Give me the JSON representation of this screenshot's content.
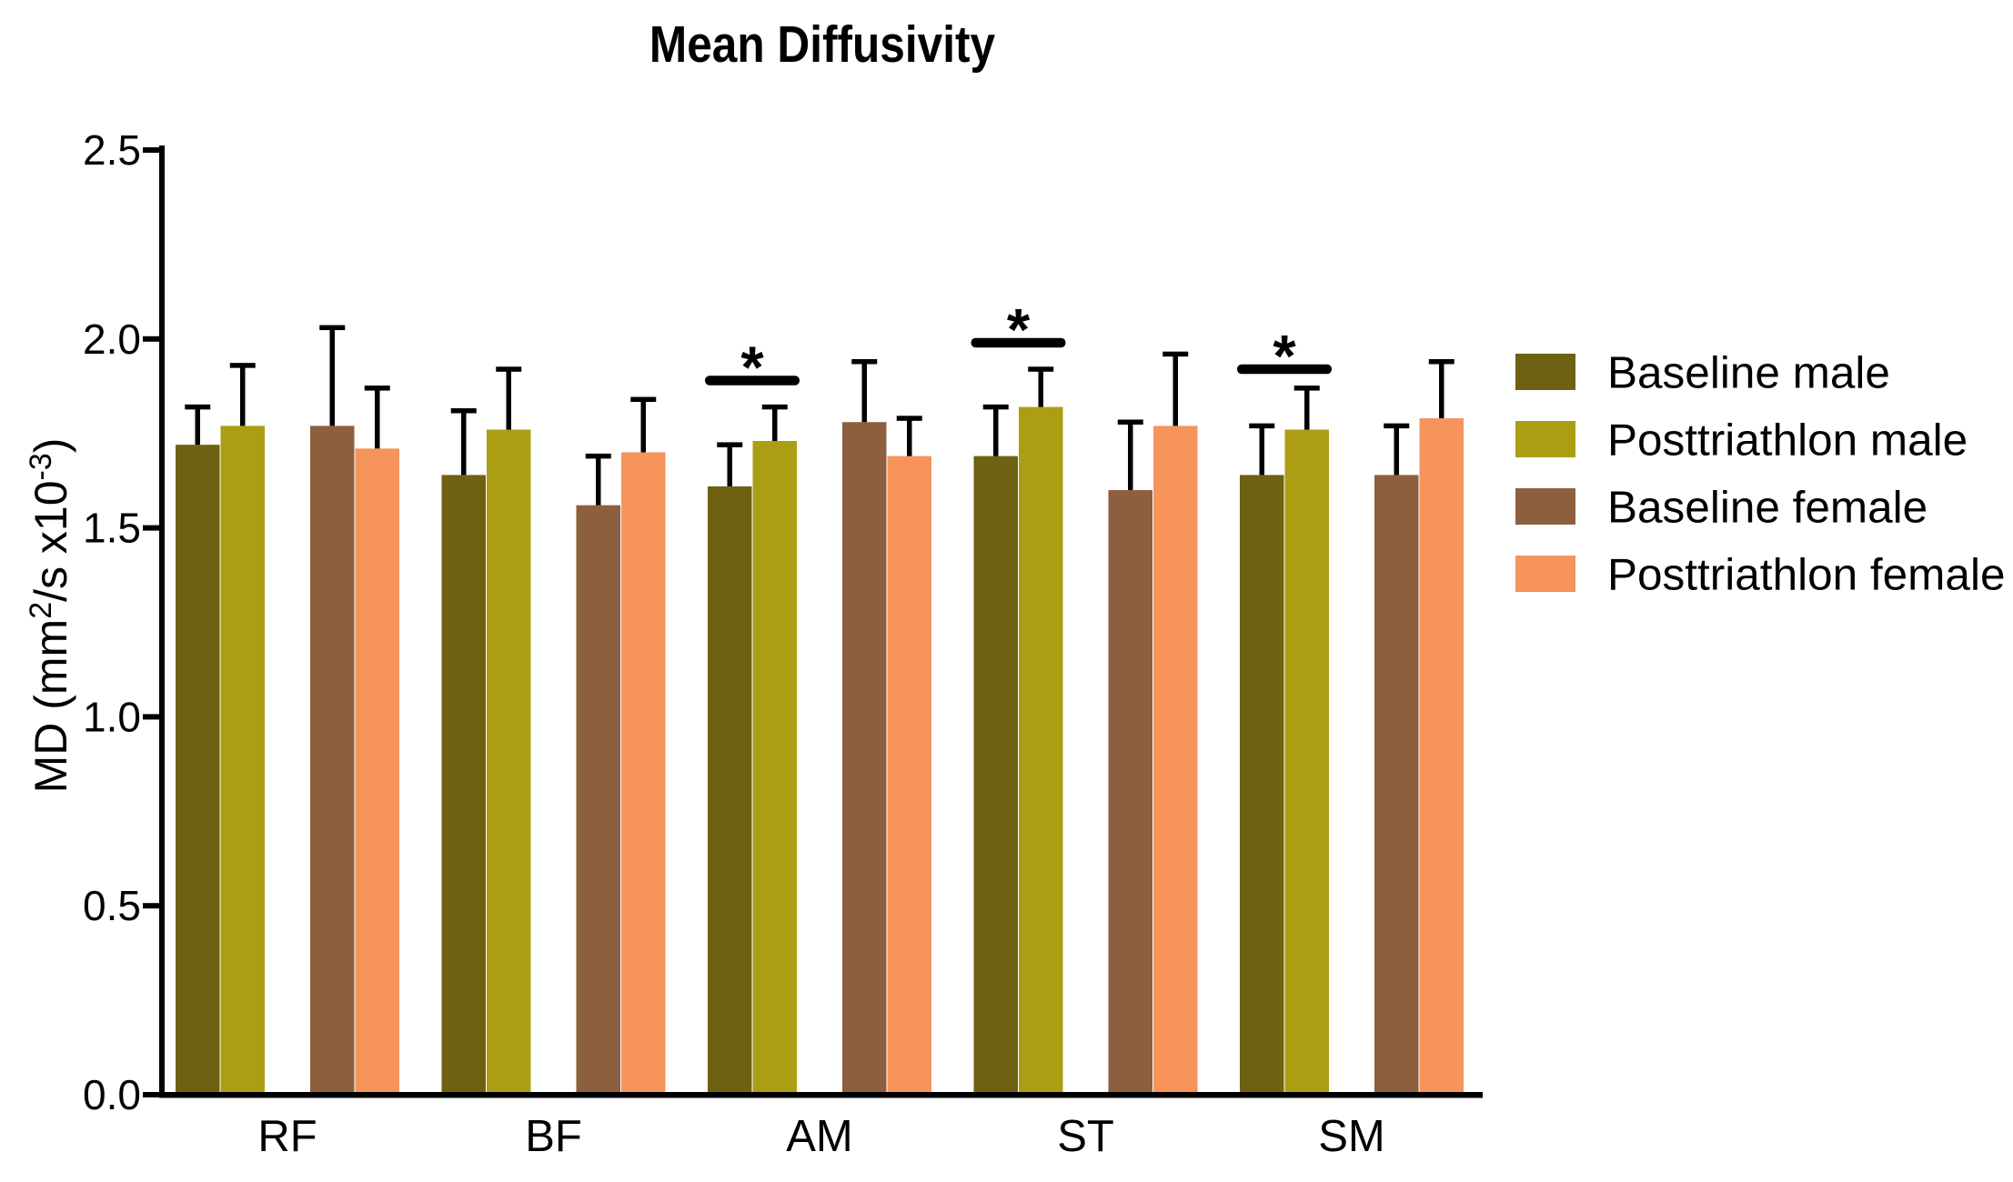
{
  "chart_data": {
    "type": "bar",
    "title": "Mean Diffusivity",
    "ylabel": "MD (mm2/s x10-3)",
    "ylabel_parts": {
      "pre": "MD (mm",
      "sup1": "2",
      "mid": "/s x10",
      "sup2": "-3",
      "post": ")"
    },
    "xlabel": "",
    "categories": [
      "RF",
      "BF",
      "AM",
      "ST",
      "SM"
    ],
    "ylim": [
      0.0,
      2.5
    ],
    "yticks": [
      0.0,
      0.5,
      1.0,
      1.5,
      2.0,
      2.5
    ],
    "ytick_labels": [
      "0.0",
      "0.5",
      "1.0",
      "1.5",
      "2.0",
      "2.5"
    ],
    "grid": false,
    "legend_position": "right",
    "error_bars": "upper only",
    "series": [
      {
        "name": "Baseline male",
        "color": "#6E6111",
        "values": [
          1.72,
          1.64,
          1.61,
          1.69,
          1.64
        ],
        "errors": [
          0.1,
          0.17,
          0.11,
          0.13,
          0.13
        ]
      },
      {
        "name": "Posttriathlon male",
        "color": "#AC9E13",
        "values": [
          1.77,
          1.76,
          1.73,
          1.82,
          1.76
        ],
        "errors": [
          0.16,
          0.16,
          0.09,
          0.1,
          0.11
        ]
      },
      {
        "name": "Baseline female",
        "color": "#8E5F3E",
        "values": [
          1.77,
          1.56,
          1.78,
          1.6,
          1.64
        ],
        "errors": [
          0.26,
          0.13,
          0.16,
          0.18,
          0.13
        ]
      },
      {
        "name": "Posttriathlon female",
        "color": "#F6945C",
        "values": [
          1.71,
          1.7,
          1.69,
          1.77,
          1.79
        ],
        "errors": [
          0.16,
          0.14,
          0.1,
          0.19,
          0.15
        ]
      }
    ],
    "significance": [
      {
        "category": "AM",
        "between": [
          "Baseline male",
          "Posttriathlon male"
        ],
        "label": "*",
        "line_y": 1.89
      },
      {
        "category": "ST",
        "between": [
          "Baseline male",
          "Posttriathlon male"
        ],
        "label": "*",
        "line_y": 1.99
      },
      {
        "category": "SM",
        "between": [
          "Baseline male",
          "Posttriathlon male"
        ],
        "label": "*",
        "line_y": 1.92
      }
    ]
  }
}
